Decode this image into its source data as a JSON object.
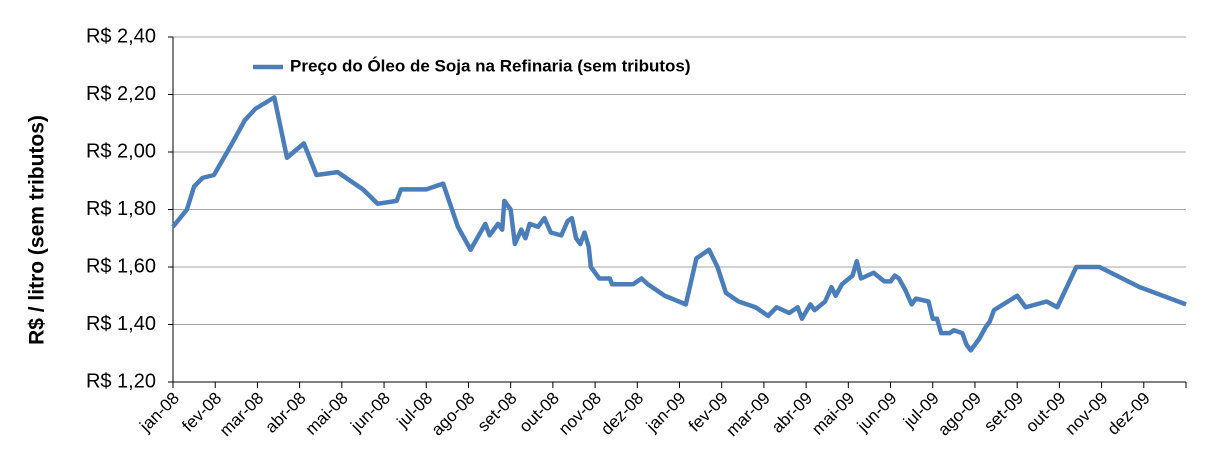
{
  "chart_data": {
    "type": "line",
    "ylabel": "R$ / litro (sem tributos)",
    "xlim": [
      0,
      24
    ],
    "xticks": [
      {
        "value": 0,
        "label": "jan-08"
      },
      {
        "value": 1,
        "label": "fev-08"
      },
      {
        "value": 2,
        "label": "mar-08"
      },
      {
        "value": 3,
        "label": "abr-08"
      },
      {
        "value": 4,
        "label": "mai-08"
      },
      {
        "value": 5,
        "label": "jun-08"
      },
      {
        "value": 6,
        "label": "jul-08"
      },
      {
        "value": 7,
        "label": "ago-08"
      },
      {
        "value": 8,
        "label": "set-08"
      },
      {
        "value": 9,
        "label": "out-08"
      },
      {
        "value": 10,
        "label": "nov-08"
      },
      {
        "value": 11,
        "label": "dez-08"
      },
      {
        "value": 12,
        "label": "jan-09"
      },
      {
        "value": 13,
        "label": "fev-09"
      },
      {
        "value": 14,
        "label": "mar-09"
      },
      {
        "value": 15,
        "label": "abr-09"
      },
      {
        "value": 16,
        "label": "mai-09"
      },
      {
        "value": 17,
        "label": "jun-09"
      },
      {
        "value": 18,
        "label": "jul-09"
      },
      {
        "value": 19,
        "label": "ago-09"
      },
      {
        "value": 20,
        "label": "set-09"
      },
      {
        "value": 21,
        "label": "out-09"
      },
      {
        "value": 22,
        "label": "nov-09"
      },
      {
        "value": 23,
        "label": "dez-09"
      },
      24
    ],
    "ylim": [
      1.2,
      2.4
    ],
    "yticks": [
      {
        "value": 1.2,
        "label": "R$ 1,20"
      },
      {
        "value": 1.4,
        "label": "R$ 1,40"
      },
      {
        "value": 1.6,
        "label": "R$ 1,60"
      },
      {
        "value": 1.8,
        "label": "R$ 1,80"
      },
      {
        "value": 2.0,
        "label": "R$ 2,00"
      },
      {
        "value": 2.2,
        "label": "R$ 2,20"
      },
      {
        "value": 2.4,
        "label": "R$ 2,40"
      }
    ],
    "grid": true,
    "legend": "top-left",
    "x": [
      0,
      0.33,
      0.5,
      0.7,
      0.97,
      1.4,
      1.7,
      1.95,
      2.4,
      2.7,
      3.1,
      3.4,
      3.9,
      4.5,
      4.85,
      5.3,
      5.4,
      6.0,
      6.4,
      6.75,
      7.05,
      7.4,
      7.5,
      7.7,
      7.8,
      7.85,
      8.0,
      8.1,
      8.25,
      8.35,
      8.45,
      8.65,
      8.8,
      8.95,
      9.2,
      9.35,
      9.45,
      9.55,
      9.65,
      9.75,
      9.85,
      9.9,
      10.1,
      10.35,
      10.4,
      10.9,
      11.0,
      11.1,
      11.25,
      11.65,
      12.15,
      12.4,
      12.7,
      12.9,
      13.1,
      13.4,
      13.8,
      14.1,
      14.3,
      14.6,
      14.8,
      14.9,
      15.1,
      15.2,
      15.45,
      15.6,
      15.7,
      15.85,
      16.1,
      16.2,
      16.3,
      16.6,
      16.85,
      17.0,
      17.1,
      17.2,
      17.35,
      17.5,
      17.6,
      17.9,
      18.0,
      18.1,
      18.2,
      18.4,
      18.5,
      18.7,
      18.8,
      18.9,
      19.1,
      19.25,
      19.35,
      19.45,
      20.0,
      20.2,
      20.7,
      20.95,
      21.4,
      21.95,
      22.9,
      24
    ],
    "series": [
      {
        "name": "Preço do Óleo de Soja na Refinaria (sem tributos)",
        "color": "#4a7ebb",
        "values": [
          1.74,
          1.8,
          1.88,
          1.91,
          1.92,
          2.03,
          2.11,
          2.15,
          2.19,
          1.98,
          2.03,
          1.92,
          1.93,
          1.87,
          1.82,
          1.83,
          1.87,
          1.87,
          1.89,
          1.74,
          1.66,
          1.75,
          1.71,
          1.75,
          1.73,
          1.83,
          1.8,
          1.68,
          1.73,
          1.7,
          1.75,
          1.74,
          1.77,
          1.72,
          1.71,
          1.76,
          1.77,
          1.7,
          1.68,
          1.72,
          1.67,
          1.6,
          1.56,
          1.56,
          1.54,
          1.54,
          1.55,
          1.56,
          1.54,
          1.5,
          1.47,
          1.63,
          1.66,
          1.6,
          1.51,
          1.48,
          1.46,
          1.43,
          1.46,
          1.44,
          1.46,
          1.42,
          1.47,
          1.45,
          1.48,
          1.53,
          1.5,
          1.54,
          1.57,
          1.62,
          1.56,
          1.58,
          1.55,
          1.55,
          1.57,
          1.56,
          1.52,
          1.47,
          1.49,
          1.48,
          1.42,
          1.42,
          1.37,
          1.37,
          1.38,
          1.37,
          1.33,
          1.31,
          1.35,
          1.39,
          1.41,
          1.45,
          1.5,
          1.46,
          1.48,
          1.46,
          1.6,
          1.6,
          1.53,
          1.47
        ]
      }
    ]
  }
}
